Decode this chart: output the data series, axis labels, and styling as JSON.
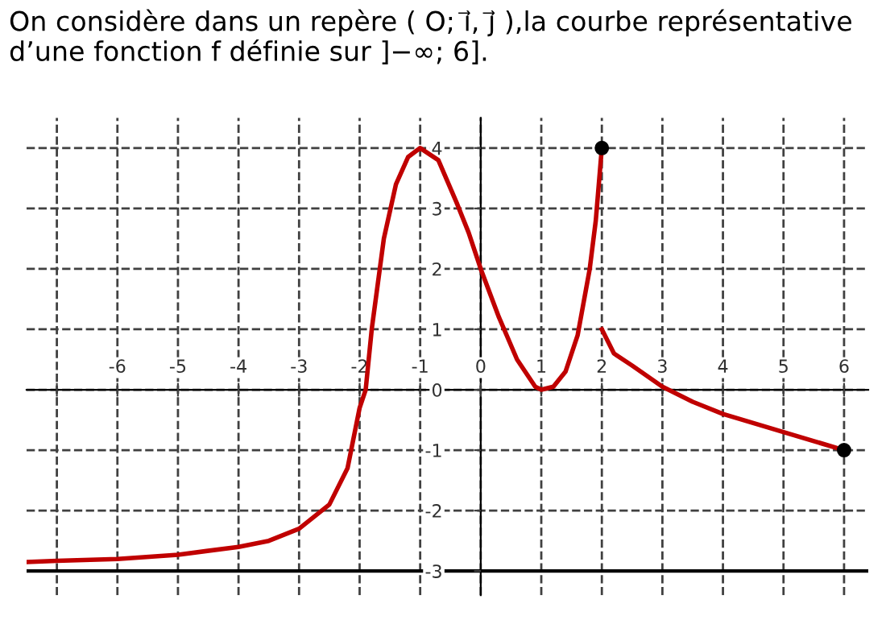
{
  "chart_data": {
    "type": "line",
    "title": "On considère dans un repère ( O; ı⃗, ȷ⃗ ),la courbe représentative d’une fonction f définie sur ]−∞; 6].",
    "series": [
      {
        "color": "#c00000",
        "x": [
          -7.5,
          -7,
          -6,
          -5,
          -4,
          -3.5,
          -3,
          -2.5,
          -2.2,
          -2,
          -1.9,
          -1.8,
          -1.6,
          -1.4,
          -1.2,
          -1,
          -0.7,
          -0.4,
          -0.2,
          0,
          0.3,
          0.6,
          0.9,
          1,
          1.2,
          1.4,
          1.6,
          1.8,
          1.9,
          2
        ],
        "values": [
          -2.85,
          -2.83,
          -2.8,
          -2.73,
          -2.6,
          -2.5,
          -2.3,
          -1.9,
          -1.3,
          -0.3,
          0,
          1,
          2.5,
          3.4,
          3.85,
          4,
          3.8,
          3.1,
          2.6,
          2,
          1.2,
          0.5,
          0.05,
          0,
          0.05,
          0.3,
          0.9,
          2,
          2.8,
          4
        ]
      },
      {
        "color": "#c00000",
        "x": [
          2,
          2.2,
          2.5,
          3,
          3.5,
          4,
          5,
          6
        ],
        "values": [
          1,
          0.6,
          0.4,
          0.05,
          -0.2,
          -0.4,
          -0.7,
          -1
        ]
      },
      {
        "type": "scatter",
        "color": "#000000",
        "x": [
          2,
          6
        ],
        "values": [
          4,
          -1
        ]
      }
    ],
    "xlim": [
      -7.5,
      6.4
    ],
    "ylim": [
      -3.4,
      4.5
    ],
    "xticks": [
      {
        "value": -7,
        "label": null
      },
      -6,
      -5,
      -4,
      -3,
      -2,
      -1,
      0,
      1,
      2,
      3,
      4,
      5,
      6
    ],
    "yticks": [
      -3,
      -2,
      -1,
      0,
      1,
      2,
      3,
      4
    ],
    "ref_lines": [
      {
        "axis": "y",
        "value": -3,
        "color": "#000000",
        "line_style": "solid"
      }
    ],
    "grid": true,
    "line_style": "solid"
  }
}
